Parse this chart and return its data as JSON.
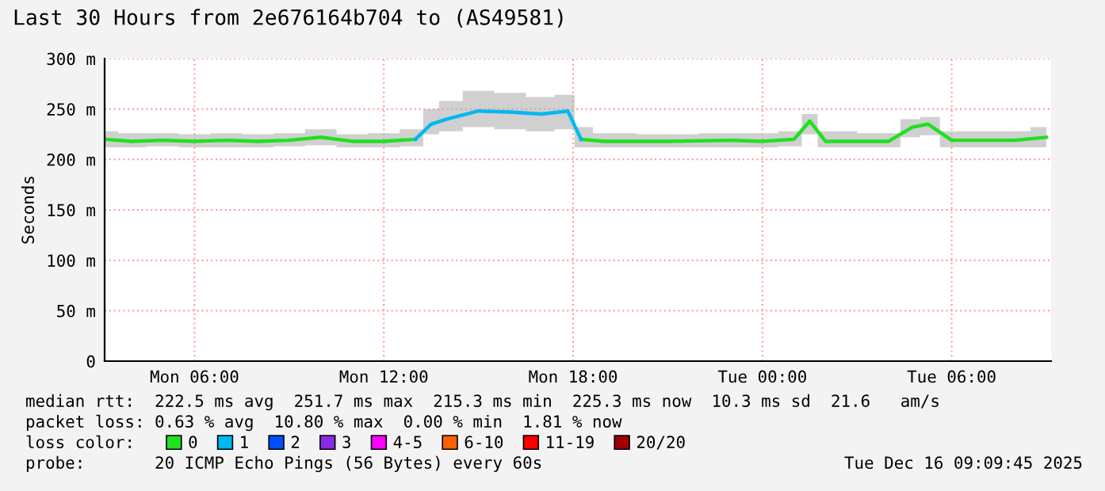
{
  "chart_data": {
    "type": "line",
    "title": "Last 30 Hours from 2e676164b704 to (AS49581)",
    "ylabel": "Seconds",
    "x": [
      "2025-12-15T03:09",
      "2025-12-15T04:00",
      "2025-12-15T05:00",
      "2025-12-15T06:00",
      "2025-12-15T07:00",
      "2025-12-15T08:00",
      "2025-12-15T09:00",
      "2025-12-15T10:00",
      "2025-12-15T11:00",
      "2025-12-15T12:00",
      "2025-12-15T13:00",
      "2025-12-15T13:30",
      "2025-12-15T14:00",
      "2025-12-15T15:00",
      "2025-12-15T16:00",
      "2025-12-15T17:00",
      "2025-12-15T17:50",
      "2025-12-15T18:15",
      "2025-12-15T19:00",
      "2025-12-15T21:00",
      "2025-12-15T23:00",
      "2025-12-16T00:00",
      "2025-12-16T01:00",
      "2025-12-16T01:30",
      "2025-12-16T02:00",
      "2025-12-16T04:00",
      "2025-12-16T04:45",
      "2025-12-16T05:15",
      "2025-12-16T06:00",
      "2025-12-16T08:00",
      "2025-12-16T09:00"
    ],
    "series": [
      {
        "name": "0",
        "color": "#20e020",
        "values": [
          220,
          218,
          219,
          218,
          219,
          218,
          219,
          222,
          218,
          218,
          220,
          null,
          null,
          null,
          null,
          null,
          null,
          220,
          218,
          218,
          219,
          218,
          220,
          238,
          218,
          218,
          232,
          235,
          219,
          219,
          222
        ],
        "lower": [
          212,
          212,
          213,
          212,
          212,
          212,
          213,
          214,
          212,
          212,
          213,
          225,
          228,
          232,
          230,
          228,
          230,
          212,
          212,
          212,
          212,
          212,
          213,
          225,
          212,
          212,
          222,
          224,
          212,
          212,
          212
        ],
        "upper": [
          228,
          226,
          226,
          225,
          226,
          225,
          226,
          230,
          225,
          226,
          230,
          250,
          258,
          268,
          266,
          262,
          264,
          232,
          226,
          225,
          226,
          226,
          228,
          245,
          228,
          226,
          240,
          242,
          228,
          228,
          232
        ]
      },
      {
        "name": "1",
        "color": "#00b8f0",
        "values": [
          null,
          null,
          null,
          null,
          null,
          null,
          null,
          null,
          null,
          null,
          220,
          235,
          240,
          248,
          247,
          245,
          248,
          220,
          null,
          null,
          null,
          null,
          null,
          null,
          null,
          null,
          null,
          null,
          null,
          null,
          null
        ]
      },
      {
        "name": "2",
        "color": "#0050ff",
        "values": [
          null,
          null,
          null,
          null,
          null,
          null,
          null,
          null,
          null,
          null,
          null,
          null,
          null,
          null,
          null,
          null,
          null,
          null,
          null,
          null,
          null,
          null,
          null,
          null,
          null,
          null,
          null,
          null,
          null,
          null,
          null
        ]
      },
      {
        "name": "3",
        "color": "#8a2be2",
        "values": [
          null,
          null,
          null,
          null,
          null,
          null,
          null,
          null,
          null,
          null,
          null,
          null,
          null,
          null,
          null,
          null,
          null,
          null,
          null,
          null,
          null,
          null,
          null,
          null,
          null,
          null,
          null,
          null,
          null,
          null,
          null
        ]
      },
      {
        "name": "4-5",
        "color": "#ff00ff",
        "values": [
          null,
          null,
          null,
          null,
          null,
          null,
          null,
          null,
          null,
          null,
          null,
          null,
          null,
          null,
          null,
          null,
          null,
          null,
          null,
          null,
          null,
          null,
          null,
          null,
          null,
          null,
          null,
          null,
          null,
          null,
          null
        ]
      },
      {
        "name": "6-10",
        "color": "#ff6000",
        "values": [
          null,
          null,
          null,
          null,
          null,
          null,
          null,
          null,
          null,
          null,
          null,
          null,
          null,
          null,
          null,
          null,
          null,
          null,
          null,
          null,
          null,
          null,
          null,
          null,
          null,
          null,
          null,
          null,
          null,
          null,
          null
        ]
      },
      {
        "name": "11-19",
        "color": "#ff0000",
        "values": [
          null,
          null,
          null,
          null,
          null,
          null,
          null,
          null,
          null,
          null,
          null,
          null,
          null,
          null,
          null,
          null,
          null,
          null,
          null,
          null,
          null,
          null,
          null,
          null,
          null,
          null,
          null,
          null,
          null,
          null,
          null
        ]
      },
      {
        "name": "20/20",
        "color": "#a00000",
        "values": [
          null,
          null,
          null,
          null,
          null,
          null,
          null,
          null,
          null,
          null,
          null,
          null,
          null,
          null,
          null,
          null,
          null,
          null,
          null,
          null,
          null,
          null,
          null,
          null,
          null,
          null,
          null,
          null,
          null,
          null,
          null
        ]
      }
    ],
    "xlim": [
      "2025-12-15T03:09",
      "2025-12-16T09:09"
    ],
    "xticks": [
      {
        "value": "2025-12-15T06:00",
        "label": "Mon 06:00"
      },
      {
        "value": "2025-12-15T12:00",
        "label": "Mon 12:00"
      },
      {
        "value": "2025-12-15T18:00",
        "label": "Mon 18:00"
      },
      {
        "value": "2025-12-16T00:00",
        "label": "Tue 00:00"
      },
      {
        "value": "2025-12-16T06:00",
        "label": "Tue 06:00"
      }
    ],
    "ylim": [
      0,
      300
    ],
    "yticks": [
      0,
      {
        "value": 50,
        "label": "50 m"
      },
      {
        "value": 100,
        "label": "100 m"
      },
      {
        "value": 150,
        "label": "150 m"
      },
      {
        "value": 200,
        "label": "200 m"
      },
      {
        "value": 250,
        "label": "250 m"
      },
      {
        "value": 300,
        "label": "300 m"
      }
    ],
    "grid": true,
    "legend": "bottom",
    "legend_title": "loss color:",
    "marker": "none",
    "line_style": "solid",
    "annotations": [
      "median rtt:  222.5 ms avg  251.7 ms max  215.3 ms min  225.3 ms now  10.3 ms sd  21.6   am/s",
      "packet loss: 0.63 % avg  10.80 % max  0.00 % min  1.81 % now",
      "probe:       20 ICMP Echo Pings (56 Bytes) every 60s",
      "Tue Dec 16 09:09:45 2025"
    ]
  }
}
